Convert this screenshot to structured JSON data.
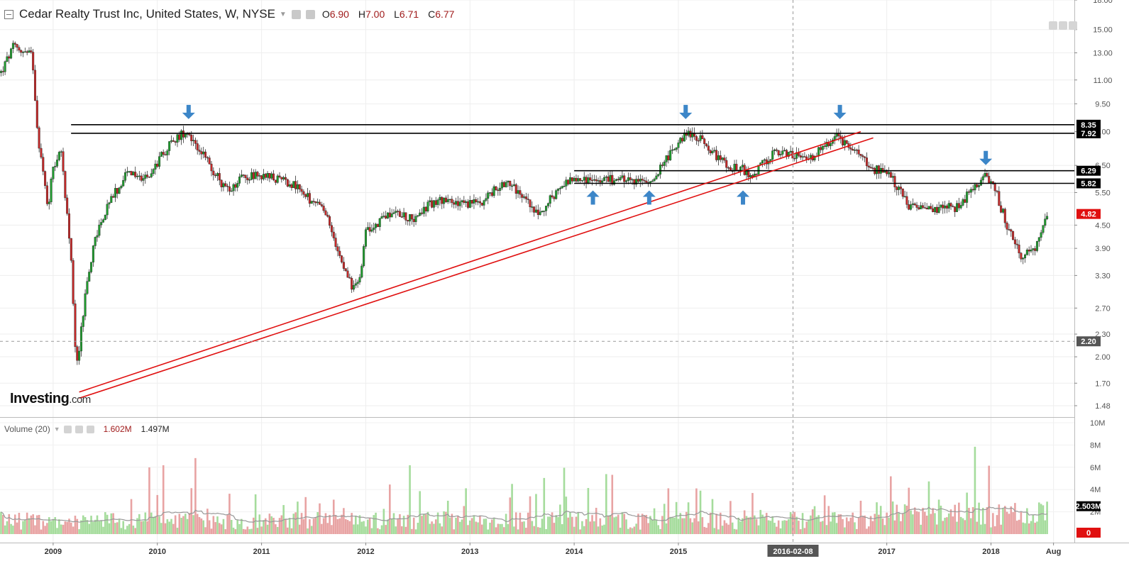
{
  "header": {
    "title": "Cedar Realty Trust Inc, United States, W, NYSE",
    "ohlc": [
      {
        "k": "O",
        "v": "6.90"
      },
      {
        "k": "H",
        "v": "7.00"
      },
      {
        "k": "L",
        "v": "6.71"
      },
      {
        "k": "C",
        "v": "6.77"
      }
    ]
  },
  "volume_header": {
    "label": "Volume (20)",
    "value1": "1.602M",
    "value2": "1.497M"
  },
  "logo": {
    "main": "Investing",
    "suffix": ".com"
  },
  "colors": {
    "up": "#26a69a",
    "up_body": "#1f9e2e",
    "down": "#c62828",
    "vol_up": "#a5dc9c",
    "vol_down": "#e8a3a3",
    "trendline": "#e01010",
    "level": "#000000",
    "arrow": "#3c86c8",
    "last_price": "#e01010"
  },
  "chart_data": {
    "type": "candlestick",
    "symbol": "CDR",
    "interval": "W",
    "x_range": [
      "2008-06",
      "2018-08"
    ],
    "x_ticks": [
      {
        "label": "2009",
        "t": 2009.0
      },
      {
        "label": "2010",
        "t": 2010.0
      },
      {
        "label": "2011",
        "t": 2011.0
      },
      {
        "label": "2012",
        "t": 2012.0
      },
      {
        "label": "2013",
        "t": 2013.0
      },
      {
        "label": "2014",
        "t": 2014.0
      },
      {
        "label": "2015",
        "t": 2015.0
      },
      {
        "label": "2017",
        "t": 2017.0
      },
      {
        "label": "2018",
        "t": 2018.0
      },
      {
        "label": "Aug",
        "t": 2018.6
      }
    ],
    "crosshair": {
      "date_label": "2016-02-08",
      "t": 2016.1,
      "price_label": "2.20",
      "price": 2.2
    },
    "y_scale": "log",
    "y_range": [
      1.35,
      18.0
    ],
    "y_ticks": [
      "18.00",
      "15.00",
      "13.00",
      "11.00",
      "9.50",
      "8.00",
      "6.50",
      "5.50",
      "4.50",
      "3.90",
      "3.30",
      "2.70",
      "2.30",
      "2.00",
      "1.70",
      "1.48"
    ],
    "price_path": [
      [
        2008.5,
        11.5
      ],
      [
        2008.62,
        13.5
      ],
      [
        2008.7,
        13.2
      ],
      [
        2008.75,
        12.9
      ],
      [
        2008.8,
        12.8
      ],
      [
        2008.85,
        8.0
      ],
      [
        2008.95,
        5.0
      ],
      [
        2009.0,
        6.5
      ],
      [
        2009.08,
        7.0
      ],
      [
        2009.18,
        3.5
      ],
      [
        2009.22,
        1.8
      ],
      [
        2009.3,
        2.8
      ],
      [
        2009.4,
        4.2
      ],
      [
        2009.55,
        5.2
      ],
      [
        2009.7,
        6.2
      ],
      [
        2009.9,
        6.0
      ],
      [
        2010.1,
        7.3
      ],
      [
        2010.28,
        8.1
      ],
      [
        2010.4,
        7.2
      ],
      [
        2010.6,
        5.9
      ],
      [
        2010.7,
        5.5
      ],
      [
        2010.8,
        6.1
      ],
      [
        2010.95,
        6.1
      ],
      [
        2011.1,
        6.0
      ],
      [
        2011.3,
        5.8
      ],
      [
        2011.45,
        5.3
      ],
      [
        2011.6,
        4.9
      ],
      [
        2011.75,
        3.8
      ],
      [
        2011.88,
        3.0
      ],
      [
        2011.95,
        3.4
      ],
      [
        2012.0,
        4.3
      ],
      [
        2012.25,
        4.9
      ],
      [
        2012.45,
        4.7
      ],
      [
        2012.7,
        5.3
      ],
      [
        2012.9,
        5.1
      ],
      [
        2013.1,
        5.2
      ],
      [
        2013.35,
        5.9
      ],
      [
        2013.5,
        5.4
      ],
      [
        2013.65,
        4.8
      ],
      [
        2013.85,
        5.6
      ],
      [
        2014.0,
        6.0
      ],
      [
        2014.2,
        5.9
      ],
      [
        2014.5,
        6.0
      ],
      [
        2014.72,
        5.8
      ],
      [
        2014.92,
        7.0
      ],
      [
        2015.07,
        8.0
      ],
      [
        2015.25,
        7.5
      ],
      [
        2015.45,
        6.5
      ],
      [
        2015.6,
        6.4
      ],
      [
        2015.7,
        6.0
      ],
      [
        2015.9,
        7.0
      ],
      [
        2016.1,
        6.9
      ],
      [
        2016.3,
        6.9
      ],
      [
        2016.5,
        7.8
      ],
      [
        2016.65,
        7.3
      ],
      [
        2016.82,
        6.5
      ],
      [
        2017.05,
        6.0
      ],
      [
        2017.2,
        5.1
      ],
      [
        2017.45,
        5.0
      ],
      [
        2017.65,
        5.0
      ],
      [
        2017.8,
        5.5
      ],
      [
        2017.95,
        6.1
      ],
      [
        2018.05,
        5.5
      ],
      [
        2018.15,
        4.5
      ],
      [
        2018.3,
        3.7
      ],
      [
        2018.42,
        3.9
      ],
      [
        2018.5,
        4.5
      ],
      [
        2018.55,
        4.82
      ]
    ],
    "volume_y_ticks": [
      "10M",
      "8M",
      "6M",
      "4M",
      "2M"
    ],
    "volume_y_range": [
      0,
      10
    ],
    "volume_last_label": "2.503M",
    "volume_zero_label": "0",
    "levels": [
      {
        "label": "8.35",
        "price": 8.35,
        "t0": 2008.6,
        "t1": 2018.8
      },
      {
        "label": "7.92",
        "price": 7.92,
        "t0": 2008.6,
        "t1": 2018.8
      },
      {
        "label": "6.29",
        "price": 6.29,
        "t0": 2014.0,
        "t1": 2018.8
      },
      {
        "label": "5.82",
        "price": 5.82,
        "t0": 2014.0,
        "t1": 2018.8
      }
    ],
    "last_price": {
      "label": "4.82",
      "price": 4.82
    },
    "trendlines": [
      {
        "t0": 2009.25,
        "p0": 1.55,
        "t1": 2016.87,
        "p1": 7.7
      },
      {
        "t0": 2009.25,
        "p0": 1.61,
        "t1": 2016.75,
        "p1": 8.0
      }
    ],
    "arrows_down": [
      {
        "t": 2010.3,
        "price": 8.35
      },
      {
        "t": 2015.07,
        "price": 8.35
      },
      {
        "t": 2016.55,
        "price": 8.35
      },
      {
        "t": 2017.95,
        "price": 6.29
      }
    ],
    "arrows_up": [
      {
        "t": 2014.18,
        "price": 5.82
      },
      {
        "t": 2014.72,
        "price": 5.82
      },
      {
        "t": 2015.62,
        "price": 5.82
      }
    ]
  }
}
